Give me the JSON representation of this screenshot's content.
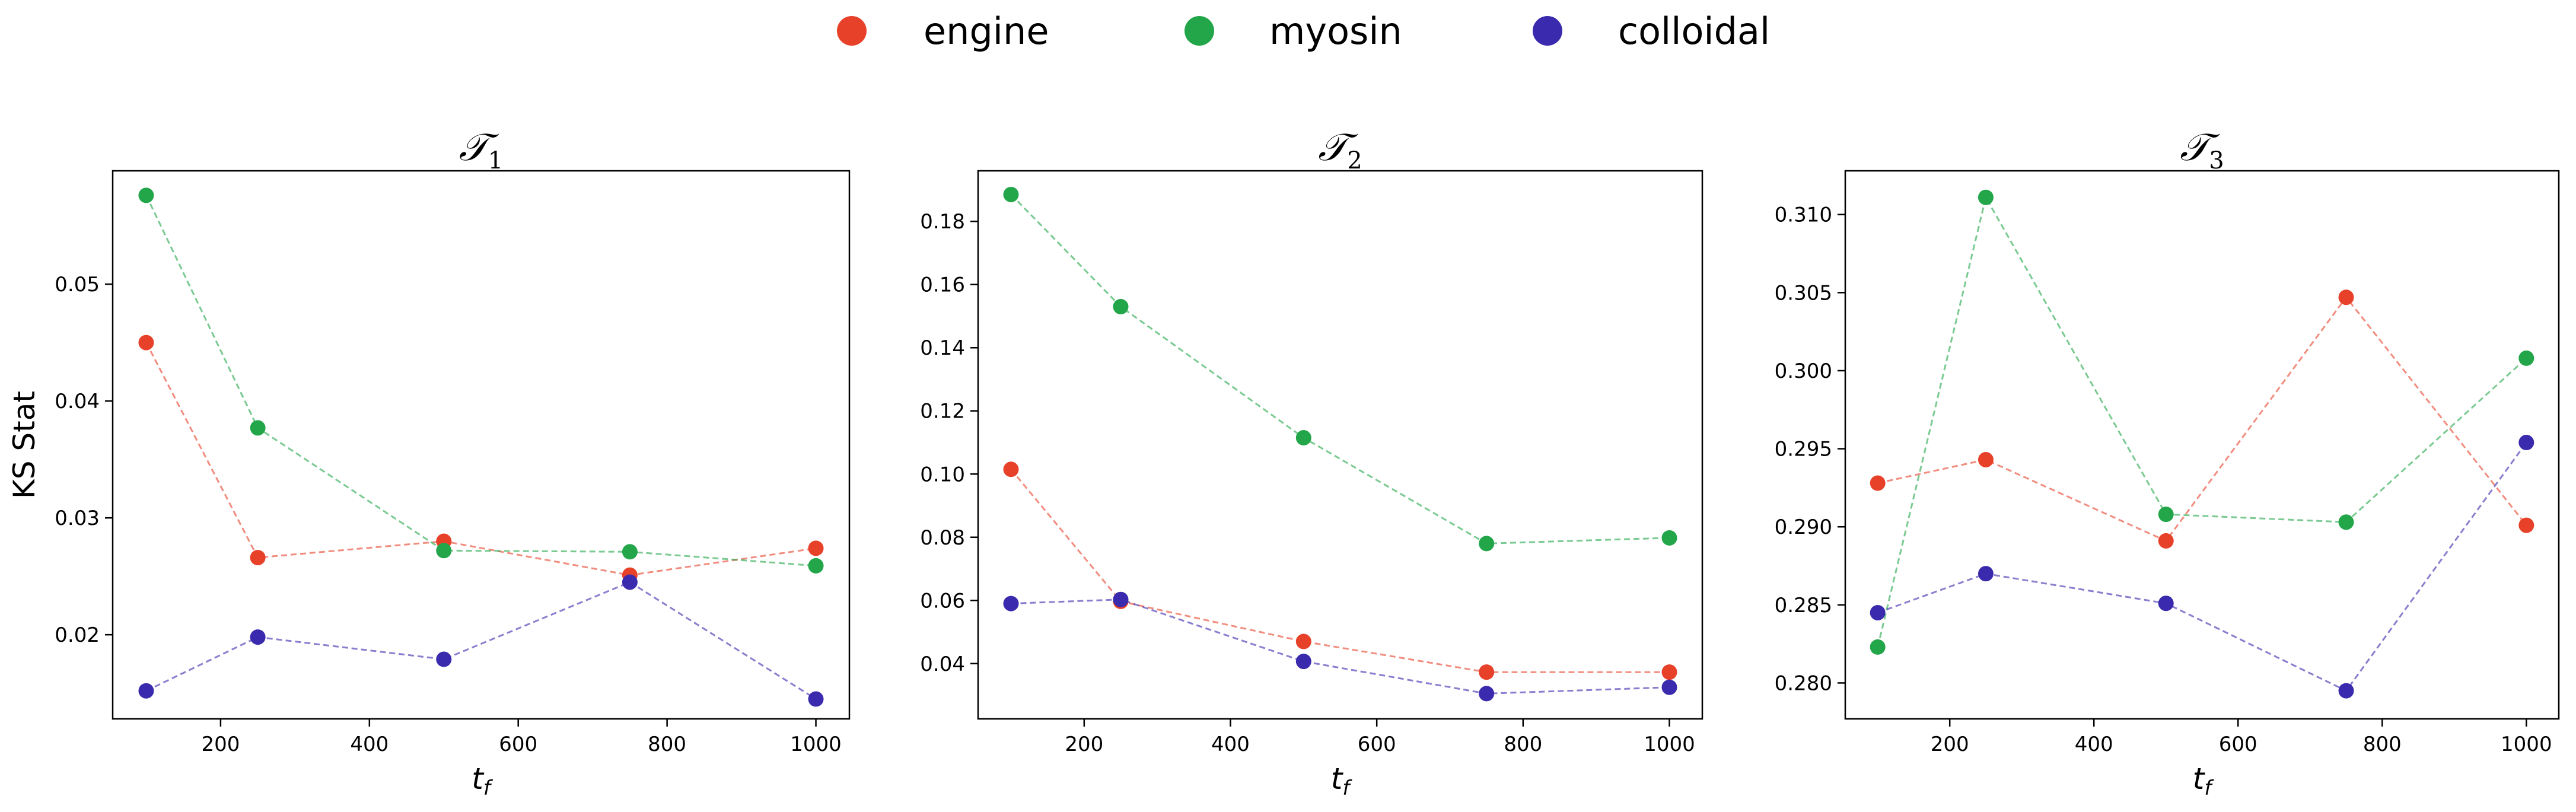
{
  "legend": [
    {
      "label": "engine",
      "color": "#e8412a"
    },
    {
      "label": "myosin",
      "color": "#23a64a"
    },
    {
      "label": "colloidal",
      "color": "#3a2aad"
    }
  ],
  "chart_data": [
    {
      "type": "line",
      "title_main": "𝒯",
      "title_sub": "1",
      "xlabel_main": "t",
      "xlabel_sub": "f",
      "ylabel": "KS Stat",
      "x": [
        100,
        250,
        500,
        750,
        1000
      ],
      "xlim": [
        55,
        1045
      ],
      "ylim": [
        0.0128,
        0.0597
      ],
      "xticks": [
        200,
        400,
        600,
        800,
        1000
      ],
      "yticks": [
        0.02,
        0.03,
        0.04,
        0.05
      ],
      "ytick_labels": [
        "0.02",
        "0.03",
        "0.04",
        "0.05"
      ],
      "series": [
        {
          "name": "engine",
          "color": "#e8412a",
          "values": [
            0.045,
            0.0266,
            0.028,
            0.0251,
            0.0274
          ]
        },
        {
          "name": "myosin",
          "color": "#23a64a",
          "values": [
            0.0576,
            0.0377,
            0.0272,
            0.0271,
            0.0259
          ]
        },
        {
          "name": "colloidal",
          "color": "#3a2aad",
          "values": [
            0.0152,
            0.0198,
            0.0179,
            0.0245,
            0.0145
          ]
        }
      ]
    },
    {
      "type": "line",
      "title_main": "𝒯",
      "title_sub": "2",
      "xlabel_main": "t",
      "xlabel_sub": "f",
      "ylabel": "",
      "x": [
        100,
        250,
        500,
        750,
        1000
      ],
      "xlim": [
        55,
        1045
      ],
      "ylim": [
        0.0225,
        0.196
      ],
      "xticks": [
        200,
        400,
        600,
        800,
        1000
      ],
      "yticks": [
        0.04,
        0.06,
        0.08,
        0.1,
        0.12,
        0.14,
        0.16,
        0.18
      ],
      "ytick_labels": [
        "0.04",
        "0.06",
        "0.08",
        "0.10",
        "0.12",
        "0.14",
        "0.16",
        "0.18"
      ],
      "series": [
        {
          "name": "engine",
          "color": "#e8412a",
          "values": [
            0.1015,
            0.0597,
            0.047,
            0.0373,
            0.0373
          ]
        },
        {
          "name": "myosin",
          "color": "#23a64a",
          "values": [
            0.1885,
            0.153,
            0.1115,
            0.078,
            0.0798
          ]
        },
        {
          "name": "colloidal",
          "color": "#3a2aad",
          "values": [
            0.059,
            0.0603,
            0.0407,
            0.0305,
            0.0325
          ]
        }
      ]
    },
    {
      "type": "line",
      "title_main": "𝒯",
      "title_sub": "3",
      "xlabel_main": "t",
      "xlabel_sub": "f",
      "ylabel": "",
      "x": [
        100,
        250,
        500,
        750,
        1000
      ],
      "xlim": [
        55,
        1045
      ],
      "ylim": [
        0.2777,
        0.3128
      ],
      "xticks": [
        200,
        400,
        600,
        800,
        1000
      ],
      "yticks": [
        0.28,
        0.285,
        0.29,
        0.295,
        0.3,
        0.305,
        0.31
      ],
      "ytick_labels": [
        "0.280",
        "0.285",
        "0.290",
        "0.295",
        "0.300",
        "0.305",
        "0.310"
      ],
      "series": [
        {
          "name": "engine",
          "color": "#e8412a",
          "values": [
            0.2928,
            0.2943,
            0.2891,
            0.3047,
            0.2901
          ]
        },
        {
          "name": "myosin",
          "color": "#23a64a",
          "values": [
            0.2823,
            0.3111,
            0.2908,
            0.2903,
            0.3008
          ]
        },
        {
          "name": "colloidal",
          "color": "#3a2aad",
          "values": [
            0.2845,
            0.287,
            0.2851,
            0.2795,
            0.2954
          ]
        }
      ]
    }
  ]
}
